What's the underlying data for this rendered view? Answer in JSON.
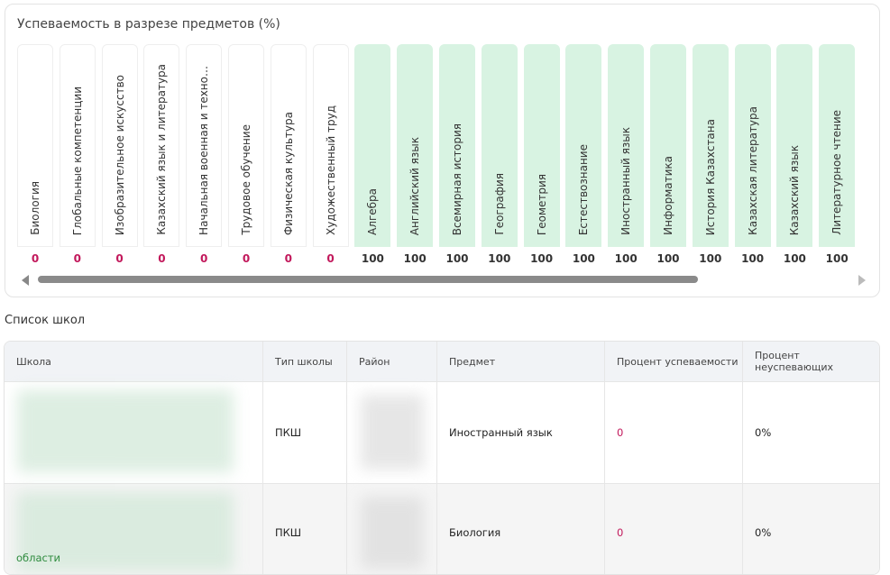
{
  "subjects_panel": {
    "title": "Успеваемость в разрезе предметов (%)",
    "items": [
      {
        "name": "Биология",
        "value": 0
      },
      {
        "name": "Глобальные компетенции",
        "value": 0
      },
      {
        "name": "Изобразительное искусство",
        "value": 0
      },
      {
        "name": "Казахский язык и литература",
        "value": 0
      },
      {
        "name": "Начальная военная и техно…",
        "value": 0
      },
      {
        "name": "Трудовое обучение",
        "value": 0
      },
      {
        "name": "Физическая культура",
        "value": 0
      },
      {
        "name": "Художественный труд",
        "value": 0
      },
      {
        "name": "Алгебра",
        "value": 100
      },
      {
        "name": "Английский язык",
        "value": 100
      },
      {
        "name": "Всемирная история",
        "value": 100
      },
      {
        "name": "География",
        "value": 100
      },
      {
        "name": "Геометрия",
        "value": 100
      },
      {
        "name": "Естествознание",
        "value": 100
      },
      {
        "name": "Иностранный язык",
        "value": 100
      },
      {
        "name": "Информатика",
        "value": 100
      },
      {
        "name": "История Казахстана",
        "value": 100
      },
      {
        "name": "Казахская литература",
        "value": 100
      },
      {
        "name": "Казахский язык",
        "value": 100
      },
      {
        "name": "Литературное чтение",
        "value": 100
      }
    ]
  },
  "schools": {
    "title": "Список школ",
    "header": [
      "Школа",
      "Тип школы",
      "Район",
      "Предмет",
      "Процент успеваемости",
      "Процент неуспевающих"
    ],
    "rows": [
      [
        "",
        "ПКШ",
        "",
        "Иностранный язык",
        "0",
        "0%"
      ],
      [
        "области",
        "ПКШ",
        "",
        "Биология",
        "0",
        "0%"
      ]
    ]
  }
}
